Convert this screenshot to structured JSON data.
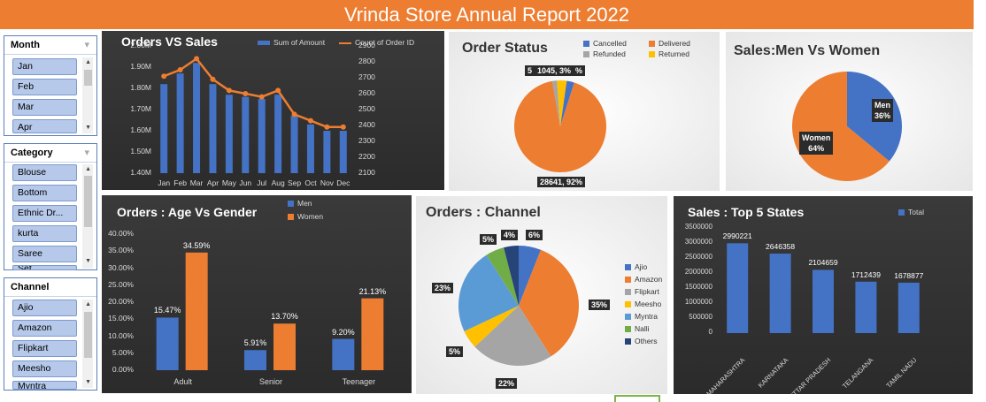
{
  "title": "Vrinda Store Annual Report 2022",
  "slicers": {
    "month": {
      "header": "Month",
      "items": [
        "Jan",
        "Feb",
        "Mar",
        "Apr"
      ]
    },
    "category": {
      "header": "Category",
      "items": [
        "Blouse",
        "Bottom",
        "Ethnic Dr...",
        "kurta",
        "Saree",
        "Set"
      ]
    },
    "channel": {
      "header": "Channel",
      "items": [
        "Ajio",
        "Amazon",
        "Flipkart",
        "Meesho",
        "Myntra"
      ]
    }
  },
  "chart_data": [
    {
      "id": "orders_vs_sales",
      "type": "bar-line",
      "title": "Orders VS Sales",
      "categories": [
        "Jan",
        "Feb",
        "Mar",
        "Apr",
        "May",
        "Jun",
        "Jul",
        "Aug",
        "Sep",
        "Oct",
        "Nov",
        "Dec"
      ],
      "series": [
        {
          "name": "Sum of Amount",
          "type": "bar",
          "axis": "left",
          "values": [
            1.82,
            1.87,
            1.92,
            1.82,
            1.77,
            1.76,
            1.75,
            1.77,
            1.67,
            1.63,
            1.6,
            1.6
          ],
          "color": "#4472c4"
        },
        {
          "name": "Count of Order ID",
          "type": "line",
          "axis": "right",
          "values": [
            2710,
            2750,
            2820,
            2690,
            2620,
            2600,
            2580,
            2620,
            2470,
            2430,
            2390,
            2390
          ],
          "color": "#ed7d31"
        }
      ],
      "left_axis": {
        "min": 1.4,
        "max": 2.0,
        "ticks": [
          "1.40M",
          "1.50M",
          "1.60M",
          "1.70M",
          "1.80M",
          "1.90M",
          "2.00M"
        ]
      },
      "right_axis": {
        "min": 2100,
        "max": 2900,
        "ticks": [
          "2100",
          "2200",
          "2300",
          "2400",
          "2500",
          "2600",
          "2700",
          "2800",
          "2900"
        ]
      },
      "legend": "top"
    },
    {
      "id": "order_status",
      "type": "pie",
      "title": "Order Status",
      "slices": [
        {
          "name": "Cancelled",
          "value": 844,
          "color": "#4472c4"
        },
        {
          "name": "Delivered",
          "value": 28641,
          "color": "#ed7d31"
        },
        {
          "name": "Refunded",
          "value": 517,
          "color": "#a5a5a5"
        },
        {
          "name": "Returned",
          "value": 1045,
          "color": "#ffc000"
        }
      ],
      "labels": {
        "delivered": "28641, 92%",
        "returned": "1045, 3%",
        "refunded": "5",
        "cancelled": "%"
      },
      "legend": "top-right"
    },
    {
      "id": "sales_men_women",
      "type": "pie",
      "title": "Sales:Men Vs Women",
      "slices": [
        {
          "name": "Men",
          "value": 36,
          "label": "36%",
          "color": "#4472c4"
        },
        {
          "name": "Women",
          "value": 64,
          "label": "64%",
          "color": "#ed7d31"
        }
      ]
    },
    {
      "id": "age_vs_gender",
      "type": "bar",
      "title": "Orders : Age Vs Gender",
      "categories": [
        "Adult",
        "Senior",
        "Teenager"
      ],
      "series": [
        {
          "name": "Men",
          "values": [
            15.47,
            5.91,
            9.2
          ],
          "labels": [
            "15.47%",
            "5.91%",
            "9.20%"
          ],
          "color": "#4472c4"
        },
        {
          "name": "Women",
          "values": [
            34.59,
            13.7,
            21.13
          ],
          "labels": [
            "34.59%",
            "13.70%",
            "21.13%"
          ],
          "color": "#ed7d31"
        }
      ],
      "ylim": [
        0,
        40
      ],
      "ticks": [
        "0.00%",
        "5.00%",
        "10.00%",
        "15.00%",
        "20.00%",
        "25.00%",
        "30.00%",
        "35.00%",
        "40.00%"
      ],
      "legend": "top"
    },
    {
      "id": "orders_channel",
      "type": "pie",
      "title": "Orders : Channel",
      "slices": [
        {
          "name": "Ajio",
          "value": 6,
          "label": "6%",
          "color": "#4472c4"
        },
        {
          "name": "Amazon",
          "value": 35,
          "label": "35%",
          "color": "#ed7d31"
        },
        {
          "name": "Flipkart",
          "value": 22,
          "label": "22%",
          "color": "#a5a5a5"
        },
        {
          "name": "Meesho",
          "value": 5,
          "label": "5%",
          "color": "#ffc000"
        },
        {
          "name": "Myntra",
          "value": 23,
          "label": "23%",
          "color": "#5b9bd5"
        },
        {
          "name": "Nalli",
          "value": 5,
          "label": "5%",
          "color": "#70ad47"
        },
        {
          "name": "Others",
          "value": 4,
          "label": "4%",
          "color": "#264478"
        }
      ],
      "legend": "right"
    },
    {
      "id": "top_5_states",
      "type": "bar",
      "title": "Sales : Top 5 States",
      "categories": [
        "MAHARASHTRA",
        "KARNATAKA",
        "UTTAR PRADESH",
        "TELANGANA",
        "TAMIL NADU"
      ],
      "series": [
        {
          "name": "Total",
          "values": [
            2990221,
            2646358,
            2104659,
            1712439,
            1678877
          ],
          "labels": [
            "2990221",
            "2646358",
            "2104659",
            "1712439",
            "1678877"
          ],
          "color": "#4472c4"
        }
      ],
      "ylim": [
        0,
        3500000
      ],
      "ticks": [
        "0",
        "500000",
        "1000000",
        "1500000",
        "2000000",
        "2500000",
        "3000000",
        "3500000"
      ],
      "legend": "top-right"
    }
  ]
}
